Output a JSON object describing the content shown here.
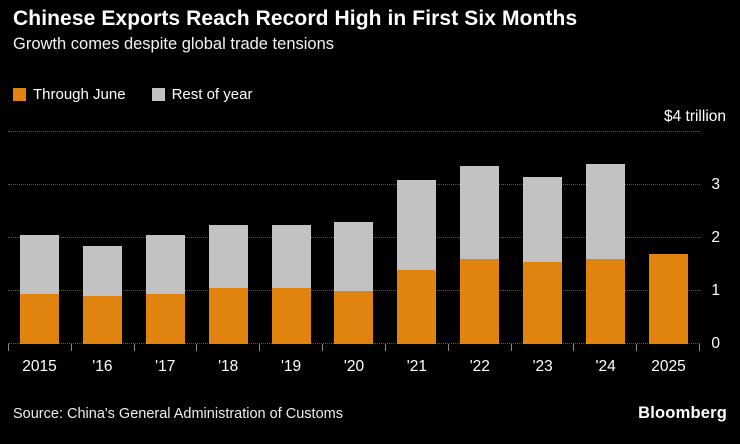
{
  "header": {
    "title": "Chinese Exports Reach Record High in First Six Months",
    "subtitle": "Growth comes despite global trade tensions"
  },
  "legend": [
    {
      "label": "Through June",
      "color": "#E0830F"
    },
    {
      "label": "Rest of year",
      "color": "#C2C2C2"
    }
  ],
  "chart_data": {
    "type": "bar",
    "stacked": true,
    "title": "Chinese Exports Reach Record High in First Six Months",
    "subtitle": "Growth comes despite global trade tensions",
    "units": "USD trillion",
    "categories": [
      "2015",
      "'16",
      "'17",
      "'18",
      "'19",
      "'20",
      "'21",
      "'22",
      "'23",
      "'24",
      "2025"
    ],
    "series": [
      {
        "name": "Through June",
        "color": "#E0830F",
        "values": [
          0.95,
          0.9,
          0.95,
          1.05,
          1.05,
          1.0,
          1.4,
          1.6,
          1.55,
          1.6,
          1.7
        ]
      },
      {
        "name": "Rest of year",
        "color": "#C2C2C2",
        "values": [
          1.1,
          0.95,
          1.1,
          1.2,
          1.2,
          1.3,
          1.7,
          1.75,
          1.6,
          1.8,
          0
        ]
      }
    ],
    "ylim": [
      0,
      4
    ],
    "yticks": [
      0,
      1,
      2,
      3
    ],
    "gridline_values": [
      0,
      1,
      2,
      3,
      4
    ],
    "y_top_label": "$4 trillion",
    "grid": "dotted horizontal",
    "legend_position": "top-left"
  },
  "footer": {
    "source": "Source: China's General Administration of Customs",
    "brand": "Bloomberg"
  }
}
